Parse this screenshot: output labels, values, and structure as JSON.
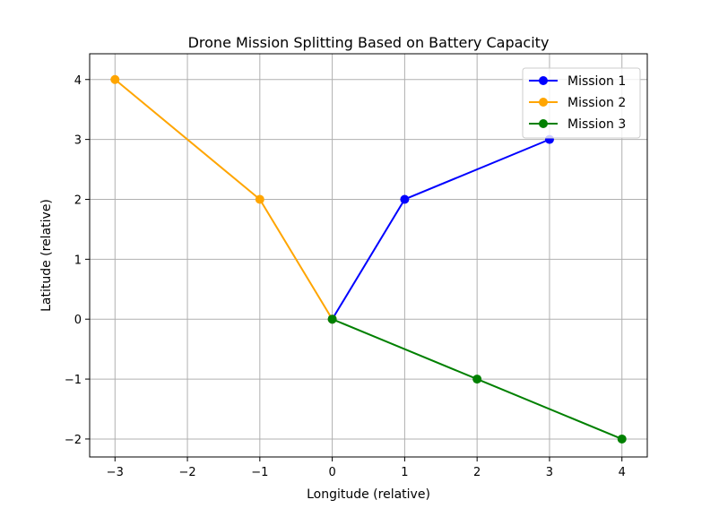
{
  "chart_data": {
    "type": "line",
    "title": "Drone Mission Splitting Based on Battery Capacity",
    "xlabel": "Longitude (relative)",
    "ylabel": "Latitude (relative)",
    "xlim": [
      -3.35,
      4.35
    ],
    "ylim": [
      -2.3,
      4.43
    ],
    "xticks": [
      -3,
      -2,
      -1,
      0,
      1,
      2,
      3,
      4
    ],
    "yticks": [
      -2,
      -1,
      0,
      1,
      2,
      3,
      4
    ],
    "xtick_labels": [
      "−3",
      "−2",
      "−1",
      "0",
      "1",
      "2",
      "3",
      "4"
    ],
    "ytick_labels": [
      "−2",
      "−1",
      "0",
      "1",
      "2",
      "3",
      "4"
    ],
    "grid": true,
    "legend_placement": "top-right",
    "series": [
      {
        "name": "Mission 1",
        "color": "#0000ff",
        "x": [
          0,
          1,
          3
        ],
        "y": [
          0,
          2,
          3
        ]
      },
      {
        "name": "Mission 2",
        "color": "#ffa500",
        "x": [
          0,
          -1,
          -3
        ],
        "y": [
          0,
          2,
          4
        ]
      },
      {
        "name": "Mission 3",
        "color": "#008000",
        "x": [
          0,
          2,
          4
        ],
        "y": [
          0,
          -1,
          -2
        ]
      }
    ]
  }
}
